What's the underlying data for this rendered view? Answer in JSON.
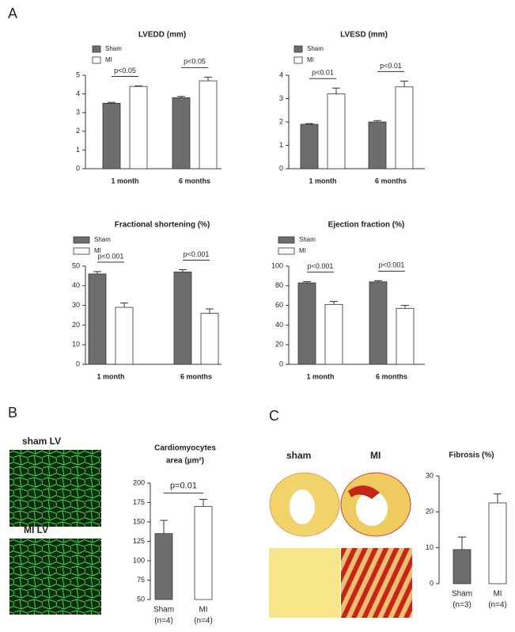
{
  "panel_labels": [
    "A",
    "B",
    "C"
  ],
  "image_labels": [
    "sham LV",
    "MI LV",
    "sham",
    "MI"
  ],
  "chart_data": [
    {
      "type": "bar",
      "title": "LVEDD (mm)",
      "categories": [
        "1 month",
        "6 months"
      ],
      "series": [
        {
          "name": "Sham",
          "color": "#6d6d6d",
          "values": [
            3.5,
            3.8
          ],
          "errors": [
            0.05,
            0.07
          ]
        },
        {
          "name": "MI",
          "color": "#ffffff",
          "values": [
            4.4,
            4.7
          ],
          "errors": [
            0.03,
            0.2
          ]
        }
      ],
      "annotations": [
        "p<0.05",
        "p<0.05"
      ],
      "ylim": [
        0,
        5
      ],
      "yticks": [
        0,
        1,
        2,
        3,
        4,
        5
      ]
    },
    {
      "type": "bar",
      "title": "LVESD (mm)",
      "categories": [
        "1 month",
        "6 months"
      ],
      "series": [
        {
          "name": "Sham",
          "color": "#6d6d6d",
          "values": [
            1.9,
            2.0
          ],
          "errors": [
            0.03,
            0.06
          ]
        },
        {
          "name": "MI",
          "color": "#ffffff",
          "values": [
            3.2,
            3.5
          ],
          "errors": [
            0.25,
            0.25
          ]
        }
      ],
      "annotations": [
        "p<0.01",
        "p<0.01"
      ],
      "ylim": [
        0,
        4
      ],
      "yticks": [
        0,
        1,
        2,
        3,
        4
      ]
    },
    {
      "type": "bar",
      "title": "Fractional shortening (%)",
      "categories": [
        "1 month",
        "6 months"
      ],
      "series": [
        {
          "name": "Sham",
          "color": "#6d6d6d",
          "values": [
            46,
            47
          ],
          "errors": [
            1.2,
            1.2
          ]
        },
        {
          "name": "MI",
          "color": "#ffffff",
          "values": [
            29,
            26
          ],
          "errors": [
            2.2,
            2.2
          ]
        }
      ],
      "annotations": [
        "p<0.001",
        "p<0.001"
      ],
      "ylim": [
        0,
        50
      ],
      "yticks": [
        0,
        10,
        20,
        30,
        40,
        50
      ]
    },
    {
      "type": "bar",
      "title": "Ejection fraction (%)",
      "categories": [
        "1 month",
        "6 months"
      ],
      "series": [
        {
          "name": "Sham",
          "color": "#6d6d6d",
          "values": [
            83,
            84
          ],
          "errors": [
            1.2,
            1.2
          ]
        },
        {
          "name": "MI",
          "color": "#ffffff",
          "values": [
            61,
            57
          ],
          "errors": [
            3,
            3
          ]
        }
      ],
      "annotations": [
        "p<0.001",
        "p<0.001"
      ],
      "ylim": [
        0,
        100
      ],
      "yticks": [
        0,
        20,
        40,
        60,
        80,
        100
      ]
    },
    {
      "type": "bar",
      "title": [
        "Cardiomyocytes",
        "area (µm²)"
      ],
      "categories": [
        "Sham",
        "MI"
      ],
      "category_notes": [
        "(n=4)",
        "(n=4)"
      ],
      "colors": [
        "#6d6d6d",
        "#ffffff"
      ],
      "values": [
        135,
        170
      ],
      "errors": [
        17,
        9
      ],
      "annotation": "p=0.01",
      "ylim": [
        50,
        200
      ],
      "yticks": [
        50,
        75,
        100,
        125,
        150,
        175,
        200
      ]
    },
    {
      "type": "bar",
      "title": "Fibrosis (%)",
      "categories": [
        "Sham",
        "MI"
      ],
      "category_notes": [
        "(n=3)",
        "(n=4)"
      ],
      "colors": [
        "#6d6d6d",
        "#ffffff"
      ],
      "values": [
        9.5,
        22.5
      ],
      "errors": [
        3.5,
        2.5
      ],
      "ylim": [
        0,
        30
      ],
      "yticks": [
        0,
        10,
        20,
        30
      ]
    }
  ]
}
